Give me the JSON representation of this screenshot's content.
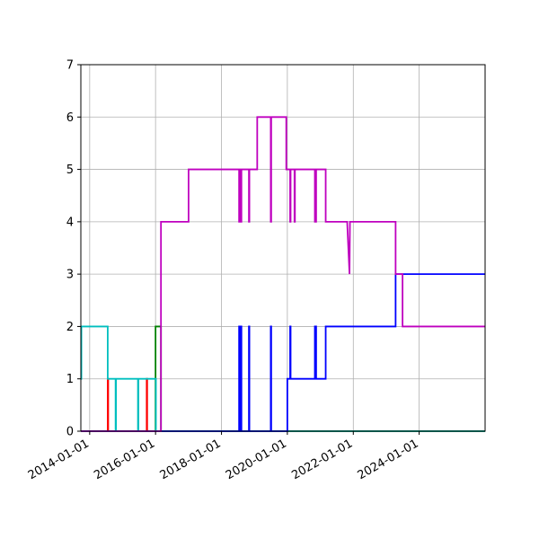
{
  "chart_data": {
    "type": "line",
    "title": "",
    "xlabel": "",
    "ylabel": "",
    "x_axis_kind": "date",
    "xlim": [
      "2013-09-25",
      "2026-01-01"
    ],
    "ylim": [
      0,
      7
    ],
    "grid": true,
    "legend": "none",
    "yticks": [
      0,
      1,
      2,
      3,
      4,
      5,
      6,
      7
    ],
    "xticks": [
      "2014-01-01",
      "2016-01-01",
      "2018-01-01",
      "2020-01-01",
      "2022-01-01",
      "2024-01-01"
    ],
    "series": [
      {
        "color": "#ff0000",
        "points": [
          [
            "2013-09-25",
            0
          ],
          [
            "2014-07-20",
            0
          ],
          [
            "2014-07-20",
            1
          ],
          [
            "2014-07-25",
            1
          ],
          [
            "2014-07-25",
            0
          ],
          [
            "2015-09-25",
            0
          ],
          [
            "2015-09-25",
            1
          ],
          [
            "2015-09-30",
            1
          ],
          [
            "2015-09-30",
            0
          ],
          [
            "2026-01-01",
            0
          ]
        ]
      },
      {
        "color": "#008000",
        "points": [
          [
            "2013-09-25",
            0
          ],
          [
            "2016-01-01",
            0
          ],
          [
            "2016-01-01",
            2
          ],
          [
            "2016-03-01",
            2
          ],
          [
            "2016-03-01",
            0
          ],
          [
            "2026-01-01",
            0
          ]
        ]
      },
      {
        "color": "#00bfbf",
        "points": [
          [
            "2013-09-25",
            1
          ],
          [
            "2013-10-01",
            1
          ],
          [
            "2013-10-01",
            2
          ],
          [
            "2014-07-20",
            2
          ],
          [
            "2014-07-20",
            1
          ],
          [
            "2014-10-15",
            1
          ],
          [
            "2014-10-15",
            0
          ],
          [
            "2014-10-20",
            0
          ],
          [
            "2014-10-20",
            1
          ],
          [
            "2015-06-20",
            1
          ],
          [
            "2015-06-20",
            0
          ],
          [
            "2015-06-25",
            0
          ],
          [
            "2015-06-25",
            1
          ],
          [
            "2016-01-05",
            1
          ],
          [
            "2016-01-05",
            0
          ],
          [
            "2026-01-01",
            0
          ]
        ]
      },
      {
        "color": "#0000ff",
        "points": [
          [
            "2013-09-25",
            0
          ],
          [
            "2018-07-15",
            0
          ],
          [
            "2018-07-15",
            2
          ],
          [
            "2018-07-20",
            2
          ],
          [
            "2018-07-20",
            0
          ],
          [
            "2018-08-01",
            0
          ],
          [
            "2018-08-01",
            2
          ],
          [
            "2018-08-10",
            2
          ],
          [
            "2018-08-10",
            0
          ],
          [
            "2018-11-01",
            0
          ],
          [
            "2018-11-01",
            2
          ],
          [
            "2018-11-06",
            2
          ],
          [
            "2018-11-06",
            0
          ],
          [
            "2019-07-01",
            0
          ],
          [
            "2019-07-01",
            2
          ],
          [
            "2019-07-06",
            2
          ],
          [
            "2019-07-06",
            0
          ],
          [
            "2020-01-01",
            0
          ],
          [
            "2020-01-01",
            1
          ],
          [
            "2020-02-01",
            1
          ],
          [
            "2020-02-01",
            2
          ],
          [
            "2020-02-06",
            2
          ],
          [
            "2020-02-06",
            1
          ],
          [
            "2020-11-01",
            1
          ],
          [
            "2020-11-01",
            2
          ],
          [
            "2020-11-15",
            2
          ],
          [
            "2020-11-15",
            1
          ],
          [
            "2021-03-01",
            1
          ],
          [
            "2021-03-01",
            2
          ],
          [
            "2023-04-15",
            2
          ],
          [
            "2023-04-15",
            3
          ],
          [
            "2026-01-01",
            3
          ]
        ]
      },
      {
        "color": "#bf00bf",
        "points": [
          [
            "2013-09-25",
            0
          ],
          [
            "2016-03-01",
            0
          ],
          [
            "2016-03-01",
            4
          ],
          [
            "2017-01-01",
            4
          ],
          [
            "2017-01-01",
            5
          ],
          [
            "2018-07-15",
            5
          ],
          [
            "2018-07-15",
            4
          ],
          [
            "2018-07-20",
            4
          ],
          [
            "2018-07-20",
            5
          ],
          [
            "2018-08-01",
            5
          ],
          [
            "2018-08-01",
            4
          ],
          [
            "2018-08-10",
            4
          ],
          [
            "2018-08-10",
            5
          ],
          [
            "2018-11-01",
            5
          ],
          [
            "2018-11-01",
            4
          ],
          [
            "2018-11-06",
            4
          ],
          [
            "2018-11-06",
            5
          ],
          [
            "2019-02-01",
            5
          ],
          [
            "2019-02-01",
            6
          ],
          [
            "2019-07-01",
            6
          ],
          [
            "2019-07-01",
            4
          ],
          [
            "2019-07-06",
            4
          ],
          [
            "2019-07-06",
            6
          ],
          [
            "2019-12-20",
            6
          ],
          [
            "2019-12-20",
            5
          ],
          [
            "2020-02-01",
            5
          ],
          [
            "2020-02-01",
            4
          ],
          [
            "2020-02-06",
            4
          ],
          [
            "2020-02-06",
            5
          ],
          [
            "2020-03-20",
            5
          ],
          [
            "2020-03-20",
            4
          ],
          [
            "2020-03-25",
            4
          ],
          [
            "2020-03-25",
            5
          ],
          [
            "2020-11-01",
            5
          ],
          [
            "2020-11-01",
            4
          ],
          [
            "2020-11-15",
            4
          ],
          [
            "2020-11-15",
            5
          ],
          [
            "2021-03-01",
            5
          ],
          [
            "2021-03-01",
            4
          ],
          [
            "2021-10-25",
            4
          ],
          [
            "2021-11-20",
            3
          ],
          [
            "2021-11-25",
            4
          ],
          [
            "2023-04-15",
            4
          ],
          [
            "2023-04-15",
            3
          ],
          [
            "2023-07-01",
            3
          ],
          [
            "2023-07-01",
            2
          ],
          [
            "2026-01-01",
            2
          ]
        ]
      }
    ]
  }
}
